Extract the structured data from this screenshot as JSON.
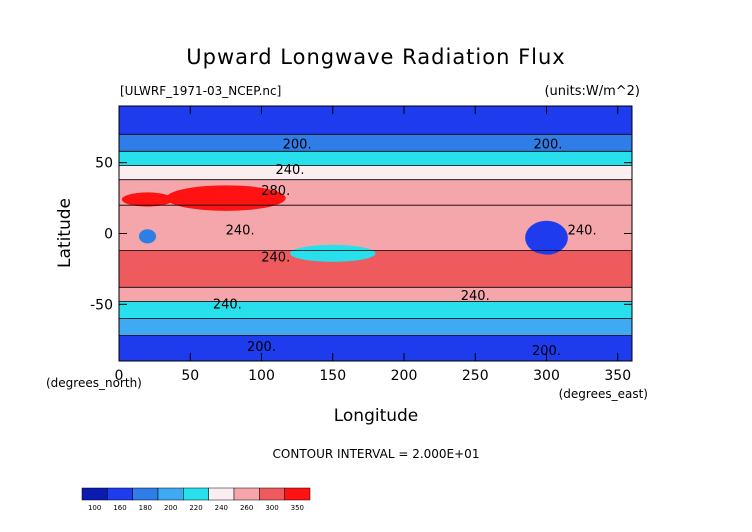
{
  "chart_data": {
    "type": "contour",
    "title": "Upward Longwave Radiation Flux",
    "source_label": "[ULWRF_1971-03_NCEP.nc]",
    "units_label": "(units:W/m^2)",
    "xlabel": "Longitude",
    "ylabel": "Latitude",
    "x_unit_label": "(degrees_east)",
    "y_unit_label": "(degrees_north)",
    "xlim": [
      0,
      360
    ],
    "ylim": [
      -90,
      90
    ],
    "x_ticks": [
      0,
      50,
      100,
      150,
      200,
      250,
      300,
      350
    ],
    "y_ticks": [
      -50,
      0,
      50
    ],
    "y_tick_labels": [
      "-50",
      "0",
      "50"
    ],
    "contour_interval_text": "CONTOUR INTERVAL = 2.000E+01",
    "contour_labels": [
      {
        "text": "200.",
        "lon": 125,
        "lat": 63
      },
      {
        "text": "240.",
        "lon": 120,
        "lat": 45
      },
      {
        "text": "280.",
        "lon": 110,
        "lat": 30
      },
      {
        "text": "240.",
        "lon": 85,
        "lat": 2
      },
      {
        "text": "240.",
        "lon": 110,
        "lat": -17
      },
      {
        "text": "240.",
        "lon": 76,
        "lat": -50
      },
      {
        "text": "240.",
        "lon": 250,
        "lat": -44
      },
      {
        "text": "200.",
        "lon": 100,
        "lat": -80
      },
      {
        "text": "200.",
        "lon": 300,
        "lat": -83
      },
      {
        "text": "200.",
        "lon": 301,
        "lat": 63
      },
      {
        "text": "240.",
        "lon": 325,
        "lat": 2
      }
    ],
    "colorbar": {
      "levels": [
        "100",
        "160",
        "180",
        "200",
        "220",
        "240",
        "260",
        "300",
        "350"
      ],
      "colors": [
        "#0b1bb0",
        "#1e3cee",
        "#2f7de6",
        "#3fa9f2",
        "#27e0ec",
        "#fbeef0",
        "#f4a6ab",
        "#ef5a5f",
        "#ff1212"
      ]
    },
    "bands": [
      {
        "lat_top": 90,
        "lat_bottom": 70,
        "level": 1
      },
      {
        "lat_top": 70,
        "lat_bottom": 58,
        "level": 2
      },
      {
        "lat_top": 58,
        "lat_bottom": 48,
        "level": 4
      },
      {
        "lat_top": 48,
        "lat_bottom": 38,
        "level": 5
      },
      {
        "lat_top": 38,
        "lat_bottom": 20,
        "level": 6
      },
      {
        "lat_top": 20,
        "lat_bottom": -12,
        "level": 6
      },
      {
        "lat_top": -12,
        "lat_bottom": -38,
        "level": 7
      },
      {
        "lat_top": -38,
        "lat_bottom": -48,
        "level": 6
      },
      {
        "lat_top": -48,
        "lat_bottom": -60,
        "level": 4
      },
      {
        "lat_top": -60,
        "lat_bottom": -72,
        "level": 3
      },
      {
        "lat_top": -72,
        "lat_bottom": -90,
        "level": 1
      }
    ]
  }
}
